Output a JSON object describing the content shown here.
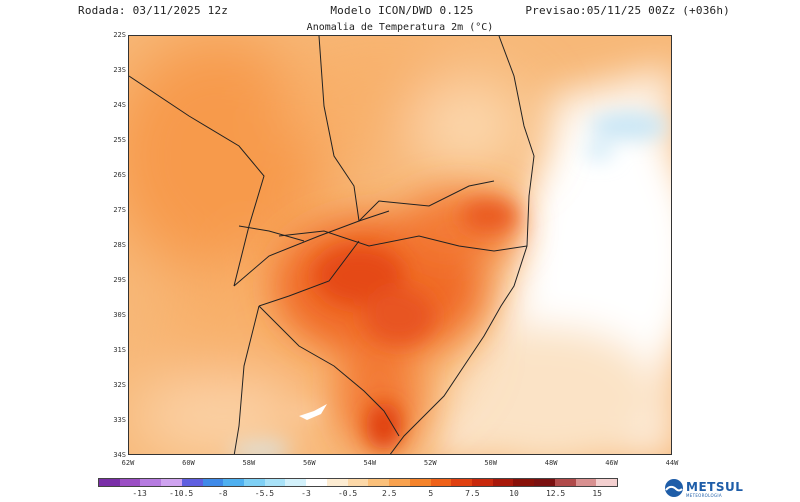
{
  "header": {
    "left": "Rodada: 03/11/2025 12z",
    "center": "Modelo ICON/DWD 0.125",
    "right": "Previsao:05/11/25 00Zz (+036h)"
  },
  "map_title": "Anomalia de Temperatura 2m (°C)",
  "lat_labels": [
    "22S",
    "23S",
    "24S",
    "25S",
    "26S",
    "27S",
    "28S",
    "29S",
    "30S",
    "31S",
    "32S",
    "33S",
    "34S"
  ],
  "lon_labels": [
    "62W",
    "60W",
    "58W",
    "56W",
    "54W",
    "52W",
    "50W",
    "48W",
    "46W",
    "44W"
  ],
  "colorbar": {
    "labels": [
      "-13",
      "-10.5",
      "-8",
      "-5.5",
      "-3",
      "-0.5",
      "2.5",
      "5",
      "7.5",
      "10",
      "12.5",
      "15"
    ],
    "colors": [
      "#7a2fa8",
      "#9b4fc4",
      "#b67be0",
      "#cfa3f0",
      "#5f5fe0",
      "#3f8ae8",
      "#4fb0f0",
      "#7fd0f5",
      "#a9e2f8",
      "#d3f1fb",
      "#ffffff",
      "#fdecd2",
      "#fcd8a8",
      "#fbc07a",
      "#f9a24f",
      "#f5832a",
      "#ef6118",
      "#e04010",
      "#c8280c",
      "#a8180a",
      "#881008",
      "#7a1010",
      "#b04a4a",
      "#d89090",
      "#f4d0d0"
    ]
  },
  "logo": {
    "name": "METSUL",
    "sub": "METEOROLOGIA"
  }
}
